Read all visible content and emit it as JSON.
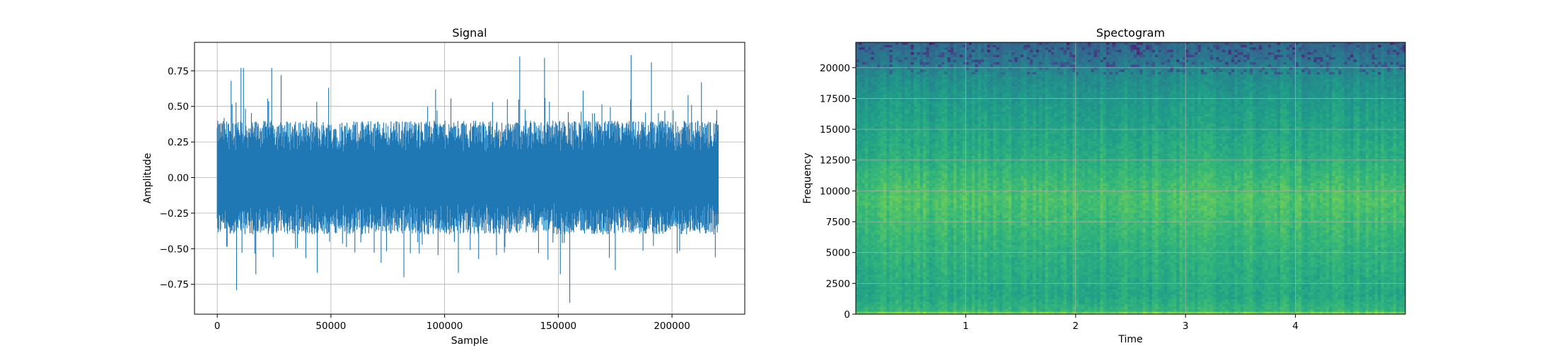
{
  "chart_data": [
    {
      "type": "line",
      "title": "Signal",
      "xlabel": "Sample",
      "ylabel": "Amplitude",
      "xlim": [
        -10000,
        232000
      ],
      "ylim": [
        -0.96,
        0.95
      ],
      "grid": true,
      "color": "#1f77b4",
      "x_ticks": [
        0,
        50000,
        100000,
        150000,
        200000
      ],
      "x_tick_labels": [
        "0",
        "50000",
        "100000",
        "150000",
        "200000"
      ],
      "y_ticks": [
        -0.75,
        -0.5,
        -0.25,
        0.0,
        0.25,
        0.5,
        0.75
      ],
      "y_tick_labels": [
        "−0.75",
        "−0.50",
        "−0.25",
        "0.00",
        "0.25",
        "0.50",
        "0.75"
      ],
      "series": [
        {
          "x_range": [
            0,
            220500
          ],
          "num_samples": 220500,
          "typical_envelope": [
            -0.4,
            0.4
          ],
          "peaks": [
            {
              "x": 3000,
              "y": 0.42
            },
            {
              "x": 6000,
              "y": 0.68
            },
            {
              "x": 8500,
              "y": -0.79
            },
            {
              "x": 10500,
              "y": 0.77
            },
            {
              "x": 11500,
              "y": 0.77
            },
            {
              "x": 17000,
              "y": -0.68
            },
            {
              "x": 24000,
              "y": 0.77
            },
            {
              "x": 28000,
              "y": 0.72
            },
            {
              "x": 44000,
              "y": -0.67
            },
            {
              "x": 49000,
              "y": 0.63
            },
            {
              "x": 72000,
              "y": -0.6
            },
            {
              "x": 82000,
              "y": -0.7
            },
            {
              "x": 96000,
              "y": 0.62
            },
            {
              "x": 106000,
              "y": -0.67
            },
            {
              "x": 133000,
              "y": 0.85
            },
            {
              "x": 144000,
              "y": 0.84
            },
            {
              "x": 151000,
              "y": -0.68
            },
            {
              "x": 155000,
              "y": -0.88
            },
            {
              "x": 161000,
              "y": 0.61
            },
            {
              "x": 175000,
              "y": -0.65
            },
            {
              "x": 182000,
              "y": 0.86
            },
            {
              "x": 191000,
              "y": 0.81
            },
            {
              "x": 207000,
              "y": 0.58
            },
            {
              "x": 213000,
              "y": 0.67
            },
            {
              "x": 219000,
              "y": -0.56
            }
          ]
        }
      ]
    },
    {
      "type": "heatmap",
      "title": "Spectogram",
      "xlabel": "Time",
      "ylabel": "Frequency",
      "xlim": [
        0,
        5.0
      ],
      "ylim": [
        0,
        22050
      ],
      "grid": true,
      "colormap": "viridis",
      "x_ticks": [
        1,
        2,
        3,
        4
      ],
      "x_tick_labels": [
        "1",
        "2",
        "3",
        "4"
      ],
      "y_ticks": [
        0,
        2500,
        5000,
        7500,
        10000,
        12500,
        15000,
        17500,
        20000
      ],
      "y_tick_labels": [
        "0",
        "2500",
        "5000",
        "7500",
        "10000",
        "12500",
        "15000",
        "17500",
        "20000"
      ],
      "frequency_profile": [
        {
          "freq": 0,
          "level": 0.86
        },
        {
          "freq": 300,
          "level": 0.66
        },
        {
          "freq": 1500,
          "level": 0.6
        },
        {
          "freq": 5000,
          "level": 0.64
        },
        {
          "freq": 9500,
          "level": 0.72
        },
        {
          "freq": 13000,
          "level": 0.62
        },
        {
          "freq": 17000,
          "level": 0.55
        },
        {
          "freq": 19500,
          "level": 0.48
        },
        {
          "freq": 20500,
          "level": 0.4
        },
        {
          "freq": 22050,
          "level": 0.33
        }
      ]
    }
  ]
}
